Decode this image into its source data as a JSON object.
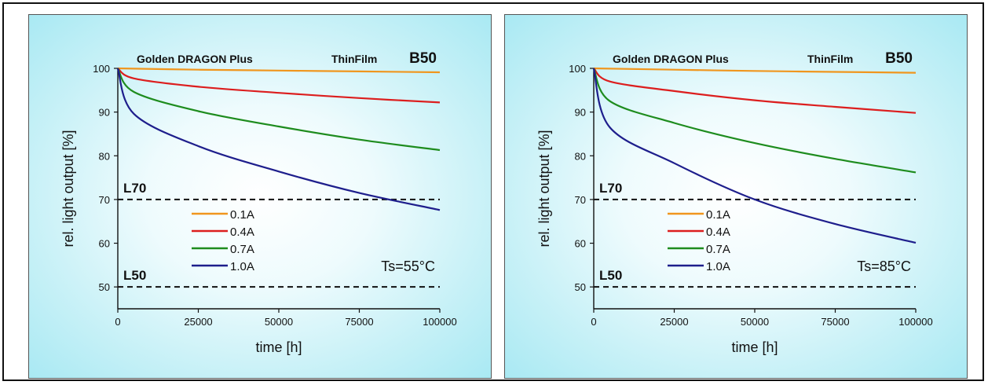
{
  "chart_data": [
    {
      "type": "line",
      "subtitle_left": "Golden DRAGON Plus",
      "subtitle_right": "ThinFilm",
      "label": "B50",
      "xlabel": "time [h]",
      "ylabel": "rel. light output [%]",
      "xlim": [
        0,
        100000
      ],
      "ylim": [
        45,
        100
      ],
      "xticks": [
        0,
        25000,
        50000,
        75000,
        100000
      ],
      "yticks": [
        50,
        60,
        70,
        80,
        90,
        100
      ],
      "threshold_lines": [
        {
          "label": "L70",
          "value": 70
        },
        {
          "label": "L50",
          "value": 50
        }
      ],
      "annotation": "Ts=55°C",
      "series": [
        {
          "name": "0.1A",
          "color": "#f0961e",
          "x": [
            0,
            25000,
            50000,
            75000,
            100000
          ],
          "y": [
            100,
            99.7,
            99.5,
            99.3,
            99.1
          ]
        },
        {
          "name": "0.4A",
          "color": "#dc1e1e",
          "x": [
            0,
            5000,
            25000,
            50000,
            75000,
            100000
          ],
          "y": [
            100,
            97.7,
            95.8,
            94.4,
            93.2,
            92.2
          ]
        },
        {
          "name": "0.7A",
          "color": "#1e8c1e",
          "x": [
            0,
            5000,
            25000,
            50000,
            75000,
            100000
          ],
          "y": [
            100,
            94.6,
            90.2,
            86.7,
            83.7,
            81.3
          ]
        },
        {
          "name": "1.0A",
          "color": "#1e1e8c",
          "x": [
            0,
            5000,
            25000,
            50000,
            75000,
            100000
          ],
          "y": [
            100,
            89.6,
            82.2,
            76.4,
            71.5,
            67.6
          ]
        }
      ]
    },
    {
      "type": "line",
      "subtitle_left": "Golden DRAGON Plus",
      "subtitle_right": "ThinFilm",
      "label": "B50",
      "xlabel": "time [h]",
      "ylabel": "rel. light output [%]",
      "xlim": [
        0,
        100000
      ],
      "ylim": [
        45,
        100
      ],
      "xticks": [
        0,
        25000,
        50000,
        75000,
        100000
      ],
      "yticks": [
        50,
        60,
        70,
        80,
        90,
        100
      ],
      "threshold_lines": [
        {
          "label": "L70",
          "value": 70
        },
        {
          "label": "L50",
          "value": 50
        }
      ],
      "annotation": "Ts=85°C",
      "series": [
        {
          "name": "0.1A",
          "color": "#f0961e",
          "x": [
            0,
            25000,
            50000,
            75000,
            100000
          ],
          "y": [
            100,
            99.7,
            99.4,
            99.2,
            99.0
          ]
        },
        {
          "name": "0.4A",
          "color": "#dc1e1e",
          "x": [
            0,
            5000,
            25000,
            50000,
            75000,
            100000
          ],
          "y": [
            100,
            97.0,
            94.8,
            92.7,
            91.2,
            89.8
          ]
        },
        {
          "name": "0.7A",
          "color": "#1e8c1e",
          "x": [
            0,
            5000,
            25000,
            50000,
            75000,
            100000
          ],
          "y": [
            100,
            92.5,
            87.5,
            82.9,
            79.3,
            76.2
          ]
        },
        {
          "name": "1.0A",
          "color": "#1e1e8c",
          "x": [
            0,
            5000,
            25000,
            50000,
            75000,
            100000
          ],
          "y": [
            100,
            86.5,
            78.3,
            70.0,
            64.4,
            60.1
          ]
        }
      ]
    }
  ]
}
